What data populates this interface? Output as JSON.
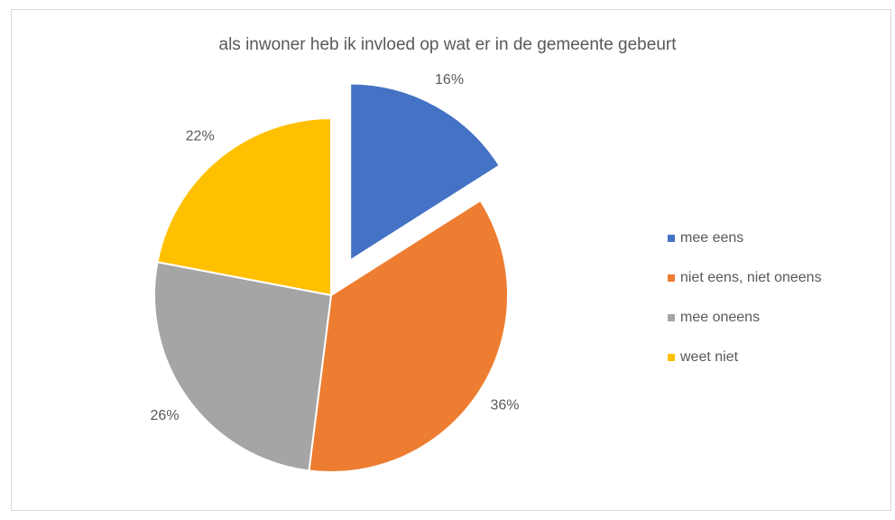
{
  "chart_data": {
    "type": "pie",
    "title": "als inwoner heb ik invloed op wat er in de gemeente gebeurt",
    "categories": [
      "mee eens",
      "niet eens, niet oneens",
      "mee oneens",
      "weet niet"
    ],
    "values": [
      16,
      36,
      26,
      22
    ],
    "value_labels": [
      "16%",
      "36%",
      "26%",
      "22%"
    ],
    "colors": [
      "#4472c4",
      "#ed7d31",
      "#a5a5a5",
      "#ffc000"
    ],
    "legend": "right"
  }
}
